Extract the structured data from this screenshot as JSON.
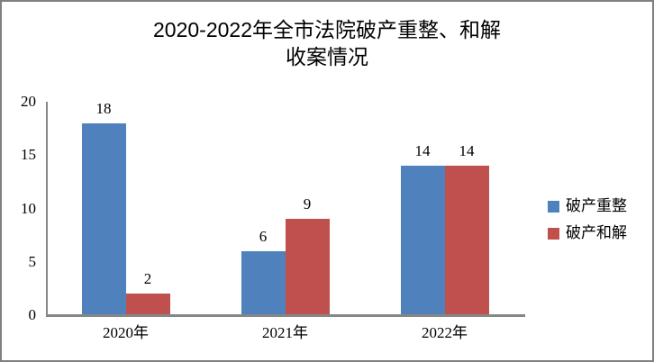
{
  "window": {
    "background_color": "#ffffff",
    "border_color": "#808080"
  },
  "chart_data": {
    "type": "bar",
    "title": "2020-2022年全市法院破产重整、和解\n收案情况",
    "categories": [
      "2020年",
      "2021年",
      "2022年"
    ],
    "series": [
      {
        "name": "破产重整",
        "color": "#4F81BD",
        "values": [
          18,
          6,
          14
        ]
      },
      {
        "name": "破产和解",
        "color": "#C0504D",
        "values": [
          2,
          9,
          14
        ]
      }
    ],
    "data_labels": [
      [
        "18",
        "6",
        "14"
      ],
      [
        "2",
        "9",
        "14"
      ]
    ],
    "xlabel": "",
    "ylabel": "",
    "ylim": [
      0,
      20
    ],
    "yticks": [
      "0",
      "5",
      "10",
      "15",
      "20"
    ],
    "grid": false,
    "legend_position": "right",
    "axis_color": "#868686"
  }
}
